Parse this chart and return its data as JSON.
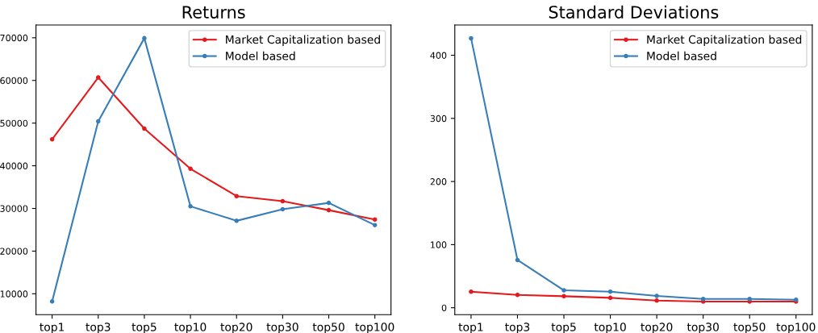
{
  "chart_data": [
    {
      "type": "line",
      "title": "Returns",
      "categories": [
        "top1",
        "top3",
        "top5",
        "top10",
        "top20",
        "top30",
        "top50",
        "top100"
      ],
      "series": [
        {
          "name": "Market Capitalization based",
          "color": "#e41a1c",
          "values": [
            46200,
            60700,
            48700,
            39300,
            32900,
            31700,
            29600,
            27400
          ]
        },
        {
          "name": "Model based",
          "color": "#377eb8",
          "values": [
            8200,
            50400,
            69900,
            30500,
            27100,
            29800,
            31300,
            26100
          ]
        }
      ],
      "ylim": [
        5100,
        73000
      ],
      "yticks": [
        10000,
        20000,
        30000,
        40000,
        50000,
        60000,
        70000
      ],
      "grid": false,
      "legend": "top right",
      "marker": "circle",
      "line_style": "solid"
    },
    {
      "type": "line",
      "title": "Standard Deviations",
      "categories": [
        "top1",
        "top3",
        "top5",
        "top10",
        "top20",
        "top30",
        "top50",
        "top100"
      ],
      "series": [
        {
          "name": "Market Capitalization based",
          "color": "#e41a1c",
          "values": [
            25.5,
            20.4,
            18.3,
            15.7,
            11.5,
            9.8,
            9.8,
            9.8
          ]
        },
        {
          "name": "Model based",
          "color": "#377eb8",
          "values": [
            427,
            75.6,
            27.6,
            25.5,
            18.7,
            14,
            14,
            12.7
          ]
        }
      ],
      "ylim": [
        -11,
        448
      ],
      "yticks": [
        0,
        100,
        200,
        300,
        400
      ],
      "grid": false,
      "legend": "top right",
      "marker": "circle",
      "line_style": "solid"
    }
  ]
}
